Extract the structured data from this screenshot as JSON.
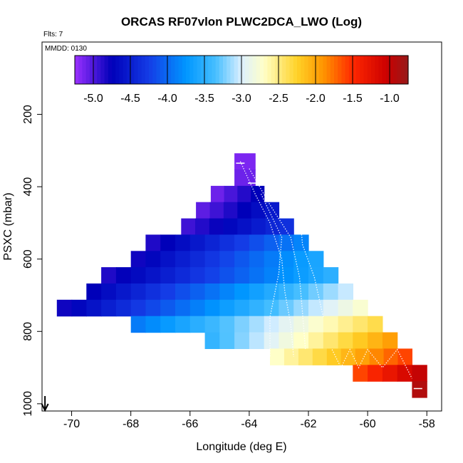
{
  "chart_data": {
    "type": "heatmap",
    "title": "ORCAS RF07vlon PLWC2DCA_LWO (Log)",
    "flights_label": "Flts: 7",
    "date_label": "MMDD: 0130",
    "xlabel": "Longitude (deg E)",
    "ylabel": "PSXC (mbar)",
    "xlim": [
      -71,
      -57.5
    ],
    "ylim": [
      1020,
      0
    ],
    "x_ticks": [
      -70,
      -68,
      -66,
      -64,
      -62,
      -60,
      -58
    ],
    "x_tick_labels": [
      "-70",
      "-68",
      "-66",
      "-64",
      "-62",
      "-60",
      "-58"
    ],
    "y_ticks": [
      200,
      400,
      600,
      800,
      1000
    ],
    "y_tick_labels": [
      "200",
      "400",
      "600",
      "800",
      "1000"
    ],
    "colorbar": {
      "range": [
        -5.25,
        -0.75
      ],
      "ticks": [
        -5.0,
        -4.5,
        -4.0,
        -3.5,
        -3.0,
        -2.5,
        -2.0,
        -1.5,
        -1.0
      ],
      "tick_labels": [
        "-5.0",
        "-4.5",
        "-4.0",
        "-3.5",
        "-3.0",
        "-2.5",
        "-2.0",
        "-1.5",
        "-1.0"
      ]
    },
    "bin_width_deg": 0.5,
    "bin_height_mbar": 45,
    "rows": [
      {
        "p": 330,
        "x0": -64.5,
        "x1": -63.8,
        "v0": -5.15,
        "v1": -4.7
      },
      {
        "p": 375,
        "x0": -64.5,
        "x1": -63.8,
        "v0": -5.1,
        "v1": -4.9
      },
      {
        "p": 420,
        "x0": -65.3,
        "x1": -63.5,
        "v0": -5.1,
        "v1": -4.75
      },
      {
        "p": 465,
        "x0": -65.8,
        "x1": -63.0,
        "v0": -5.05,
        "v1": -4.55
      },
      {
        "p": 510,
        "x0": -66.3,
        "x1": -62.5,
        "v0": -4.95,
        "v1": -4.35
      },
      {
        "p": 555,
        "x0": -67.5,
        "x1": -62.0,
        "v0": -4.85,
        "v1": -3.85
      },
      {
        "p": 600,
        "x0": -68.0,
        "x1": -61.5,
        "v0": -4.8,
        "v1": -3.6
      },
      {
        "p": 645,
        "x0": -69.0,
        "x1": -61.0,
        "v0": -4.85,
        "v1": -3.5
      },
      {
        "p": 690,
        "x0": -69.5,
        "x1": -60.5,
        "v0": -4.75,
        "v1": -3.05
      },
      {
        "p": 735,
        "x0": -70.5,
        "x1": -60.0,
        "v0": -4.8,
        "v1": -2.75
      },
      {
        "p": 780,
        "x0": -68.0,
        "x1": -59.5,
        "v0": -3.9,
        "v1": -2.35
      },
      {
        "p": 825,
        "x0": -65.5,
        "x1": -59.0,
        "v0": -3.45,
        "v1": -1.95
      },
      {
        "p": 870,
        "x0": -63.3,
        "x1": -58.5,
        "v0": -2.7,
        "v1": -1.6
      },
      {
        "p": 915,
        "x0": -60.5,
        "x1": -58.0,
        "v0": -1.6,
        "v1": -1.0
      },
      {
        "p": 960,
        "x0": -58.5,
        "x1": -58.0,
        "v0": -0.9,
        "v1": -0.9
      }
    ],
    "arrow_marker_lon": -70.9
  }
}
